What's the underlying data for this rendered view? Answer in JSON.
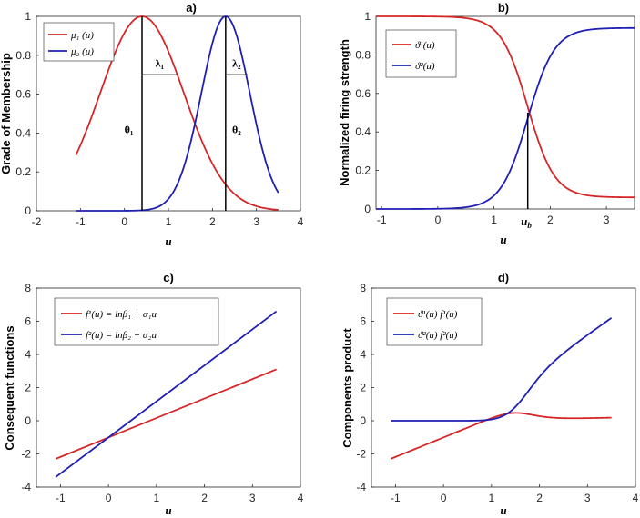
{
  "chart_data": [
    {
      "id": "a",
      "type": "line",
      "title": "a)",
      "xlabel": "u",
      "ylabel": "Grade of Membership",
      "xlim": [
        -2,
        4
      ],
      "ylim": [
        0,
        1
      ],
      "xticks": [
        "-2",
        "-1",
        "0",
        "1",
        "2",
        "3",
        "4"
      ],
      "yticks": [
        "0",
        "0.2",
        "0.4",
        "0.6",
        "0.8",
        "1"
      ],
      "legend": [
        "μ₁ (u)",
        "μ₂ (u)"
      ],
      "series": [
        {
          "name": "μ₁ (u)",
          "color": "#d62728",
          "center": 0.4,
          "sigma": 0.95,
          "x_range": [
            -1.1,
            3.5
          ]
        },
        {
          "name": "μ₂ (u)",
          "color": "#1f1fb4",
          "center": 2.3,
          "sigma": 0.55,
          "x_range": [
            -1.1,
            3.5
          ]
        }
      ],
      "vlines": [
        {
          "x": 0.4,
          "y": [
            0,
            1
          ]
        },
        {
          "x": 2.3,
          "y": [
            0,
            1
          ]
        }
      ],
      "hsegments": [
        {
          "x": [
            0.4,
            1.2
          ],
          "y": 0.7
        },
        {
          "x": 2.3,
          "y": 0.7,
          "x_end": 2.8
        }
      ],
      "annotations": [
        {
          "text": "λ₁",
          "x": 0.8,
          "y": 0.74
        },
        {
          "text": "λ₂",
          "x": 2.55,
          "y": 0.74
        },
        {
          "text": "θ₁",
          "x": 0.1,
          "y": 0.4
        },
        {
          "text": "θ₂",
          "x": 2.55,
          "y": 0.4
        }
      ]
    },
    {
      "id": "b",
      "type": "line",
      "title": "b)",
      "xlabel": "u",
      "ylabel": "Normalized firing strength",
      "xlim": [
        -1.1,
        3.5
      ],
      "ylim": [
        0,
        1
      ],
      "xticks": [
        "-1",
        "0",
        "1",
        "2",
        "3"
      ],
      "xtick_values": [
        -1,
        0,
        1,
        2,
        3
      ],
      "yticks": [
        "0",
        "0.2",
        "0.4",
        "0.6",
        "0.8",
        "1"
      ],
      "extra_xtick": "u_b",
      "u_b": 1.6,
      "legend": [
        "ϑ¹(u)",
        "ϑ²(u)"
      ],
      "series": [
        {
          "name": "ϑ¹(u)",
          "color": "#d62728"
        },
        {
          "name": "ϑ²(u)",
          "color": "#1f1fb4"
        }
      ]
    },
    {
      "id": "c",
      "type": "line",
      "title": "c)",
      "xlabel": "u",
      "ylabel": "Consequent functions",
      "xlim": [
        -1.5,
        4
      ],
      "ylim": [
        -4,
        8
      ],
      "xticks": [
        "-1",
        "0",
        "1",
        "2",
        "3",
        "4"
      ],
      "xtick_values": [
        -1,
        0,
        1,
        2,
        3,
        4
      ],
      "yticks": [
        "-4",
        "-2",
        "0",
        "2",
        "4",
        "6",
        "8"
      ],
      "legend": [
        "f¹(u) = lnβ₁ + α₁u",
        "f²(u) = lnβ₂ + α₂u"
      ],
      "series": [
        {
          "name": "f1",
          "color": "#d62728",
          "x": [
            -1.1,
            3.5
          ],
          "y": [
            -2.3,
            3.1
          ]
        },
        {
          "name": "f2",
          "color": "#1f1fb4",
          "x": [
            -1.1,
            3.5
          ],
          "y": [
            -3.4,
            6.6
          ]
        }
      ]
    },
    {
      "id": "d",
      "type": "line",
      "title": "d)",
      "xlabel": "u",
      "ylabel": "Components product",
      "xlim": [
        -1.5,
        4
      ],
      "ylim": [
        -4,
        8
      ],
      "xticks": [
        "-1",
        "0",
        "1",
        "2",
        "3",
        "4"
      ],
      "xtick_values": [
        -1,
        0,
        1,
        2,
        3,
        4
      ],
      "yticks": [
        "-4",
        "-2",
        "0",
        "2",
        "4",
        "6",
        "8"
      ],
      "legend": [
        "ϑ¹(u) f¹(u)",
        "ϑ²(u) f²(u)"
      ],
      "series": [
        {
          "name": "p1",
          "color": "#d62728"
        },
        {
          "name": "p2",
          "color": "#1f1fb4"
        }
      ]
    }
  ]
}
